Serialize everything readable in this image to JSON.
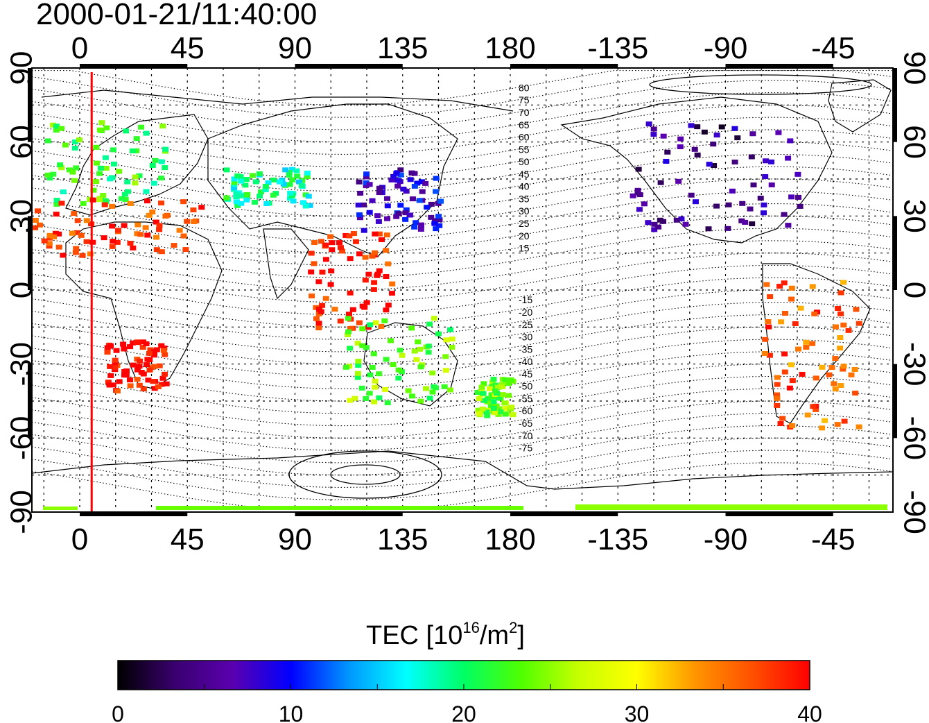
{
  "timestamp": "2000-01-21/11:40:00",
  "map": {
    "top_lon_ticks": [
      "0",
      "45",
      "90",
      "135",
      "180",
      "-135",
      "-90",
      "-45"
    ],
    "bottom_lon_ticks": [
      "0",
      "45",
      "90",
      "135",
      "180",
      "-135",
      "-90",
      "-45"
    ],
    "left_lat_ticks": [
      "90",
      "60",
      "30",
      "0",
      "-30",
      "-60",
      "-90"
    ],
    "right_lat_ticks": [
      "90",
      "60",
      "30",
      "0",
      "-30",
      "-60",
      "-90"
    ],
    "contour_labels_north": [
      "80",
      "75",
      "70",
      "65",
      "60",
      "55",
      "50",
      "45",
      "40",
      "35",
      "30",
      "25",
      "20",
      "15"
    ],
    "contour_labels_south": [
      "-15",
      "-20",
      "-25",
      "-30",
      "-35",
      "-40",
      "-45",
      "-50",
      "-55",
      "-60",
      "-65",
      "-70",
      "-75"
    ],
    "marker_longitude": 5,
    "marker_color": "#ff0000"
  },
  "colorbar": {
    "title_main": "TEC  [10",
    "title_sup": "16",
    "title_mid": "/m",
    "title_sup2": "2",
    "title_end": "]",
    "ticks": [
      "0",
      "10",
      "20",
      "30",
      "40"
    ],
    "range": [
      0,
      40
    ],
    "colors": [
      "#000000",
      "#3a0070",
      "#5a00b0",
      "#0000ff",
      "#0096ff",
      "#00ffff",
      "#00ff64",
      "#50ff00",
      "#c8ff00",
      "#ffff00",
      "#ff9600",
      "#ff5000",
      "#ff0000"
    ]
  },
  "observations": [
    {
      "region": "europe",
      "lon": [
        -15,
        35
      ],
      "lat": [
        35,
        70
      ],
      "tec": 22
    },
    {
      "region": "north-africa",
      "lon": [
        -20,
        50
      ],
      "lat": [
        15,
        38
      ],
      "tec": 38
    },
    {
      "region": "central-asia",
      "lon": [
        60,
        95
      ],
      "lat": [
        35,
        50
      ],
      "tec": 19
    },
    {
      "region": "east-asia",
      "lon": [
        115,
        150
      ],
      "lat": [
        25,
        50
      ],
      "tec": 8
    },
    {
      "region": "south-east-asia",
      "lon": [
        95,
        130
      ],
      "lat": [
        -15,
        25
      ],
      "tec": 39
    },
    {
      "region": "australia",
      "lon": [
        110,
        155
      ],
      "lat": [
        -45,
        -10
      ],
      "tec": 24
    },
    {
      "region": "new-zealand",
      "lon": [
        165,
        180
      ],
      "lat": [
        -50,
        -35
      ],
      "tec": 24
    },
    {
      "region": "north-america",
      "lon": [
        -130,
        -60
      ],
      "lat": [
        25,
        70
      ],
      "tec": 5
    },
    {
      "region": "south-america",
      "lon": [
        -75,
        -35
      ],
      "lat": [
        -55,
        5
      ],
      "tec": 36
    },
    {
      "region": "south-africa",
      "lon": [
        10,
        35
      ],
      "lat": [
        -40,
        -20
      ],
      "tec": 40
    },
    {
      "region": "antarctica",
      "lon": [
        -180,
        180
      ],
      "lat": [
        -88,
        -86
      ],
      "tec": 25
    }
  ]
}
